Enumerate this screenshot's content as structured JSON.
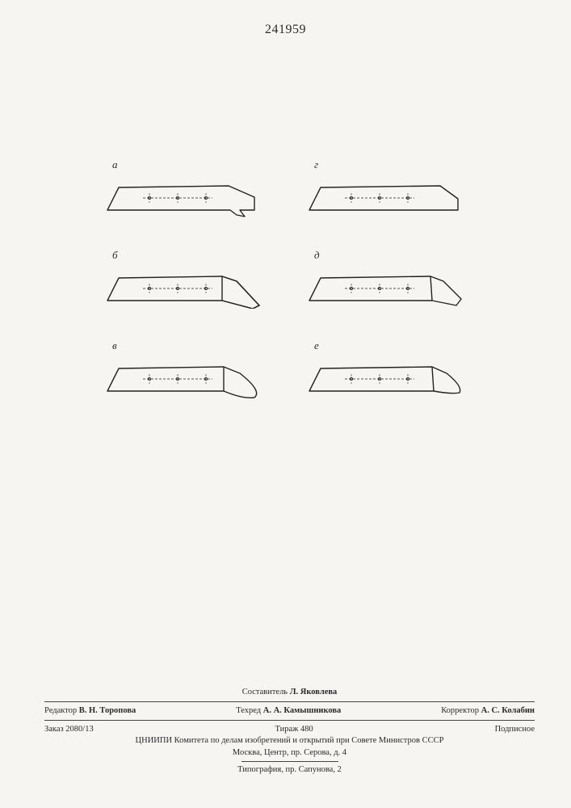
{
  "doc_number": "241959",
  "figures": {
    "stroke": "#222222",
    "stroke_width": 1.4,
    "centerline_dash": "3,2",
    "hole_radius": 1.6,
    "subfigs": [
      {
        "label": "а",
        "tip": "notch-down"
      },
      {
        "label": "г",
        "tip": "plain"
      },
      {
        "label": "б",
        "tip": "chisel-long"
      },
      {
        "label": "д",
        "tip": "chisel-short"
      },
      {
        "label": "в",
        "tip": "round-long"
      },
      {
        "label": "е",
        "tip": "round-short"
      }
    ]
  },
  "footer": {
    "compiler_label": "Составитель",
    "compiler": "Л. Яковлева",
    "editor_label": "Редактор",
    "editor": "В. Н. Торопова",
    "techred_label": "Техред",
    "techred": "А. А. Камышникова",
    "corrector_label": "Корректор",
    "corrector": "А. С. Колабин",
    "order_label": "Заказ",
    "order": "2080/13",
    "tirage_label": "Тираж",
    "tirage": "480",
    "subscription": "Подписное",
    "org": "ЦНИИПИ Комитета по делам изобретений и открытий при Совете Министров СССР",
    "org_addr": "Москва, Центр, пр. Серова, д. 4",
    "press": "Типография, пр. Сапунова, 2"
  }
}
